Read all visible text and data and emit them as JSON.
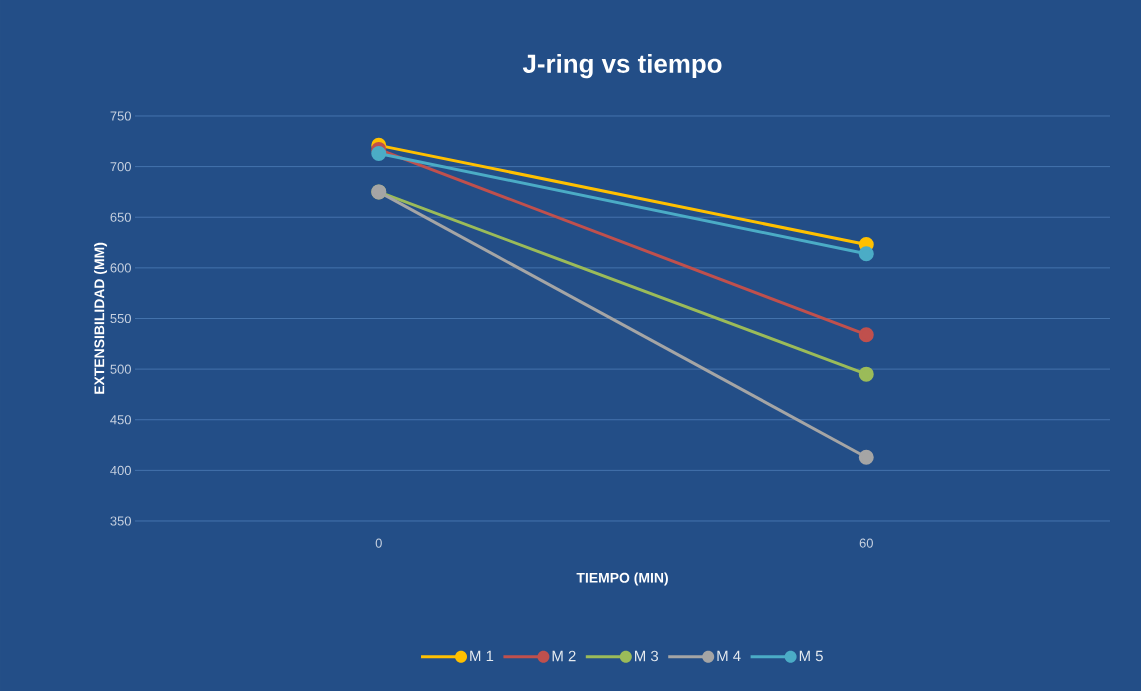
{
  "chart_data": {
    "type": "line",
    "title": "J-ring vs tiempo",
    "xlabel": "TIEMPO (MIN)",
    "ylabel": "EXTENSIBILIDAD (MM)",
    "categories": [
      "0",
      "60"
    ],
    "series": [
      {
        "name": "M 1",
        "color": "#ffc000",
        "values": [
          721,
          623
        ]
      },
      {
        "name": "M 2",
        "color": "#c0504d",
        "values": [
          717,
          534
        ]
      },
      {
        "name": "M 3",
        "color": "#9bbb59",
        "values": [
          675,
          495
        ]
      },
      {
        "name": "M 4",
        "color": "#a5a5a5",
        "values": [
          675,
          413
        ]
      },
      {
        "name": "M 5",
        "color": "#4bacc6",
        "values": [
          713,
          614
        ]
      }
    ],
    "ylim": [
      350,
      750
    ],
    "yticks": [
      350,
      400,
      450,
      500,
      550,
      600,
      650,
      700,
      750
    ],
    "grid": "y",
    "legend": "bottom",
    "marker": "circle",
    "line_style": "solid"
  }
}
